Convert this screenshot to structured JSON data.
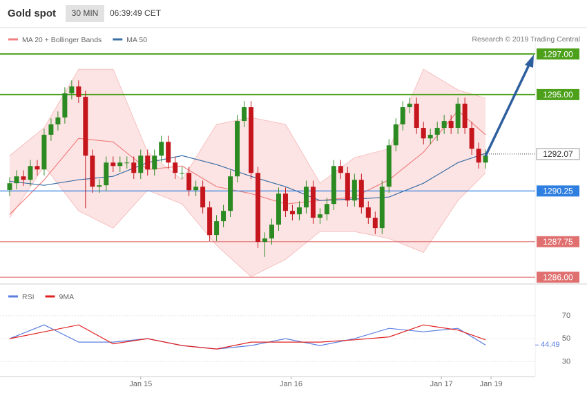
{
  "header": {
    "title": "Gold spot",
    "interval": "30 MIN",
    "time": "06:39:49 CET"
  },
  "credit": "Research © 2019 Trading Central",
  "chart_data": [
    {
      "type": "candlestick",
      "ylim": [
        1285.7,
        1297.55
      ],
      "xlim": [
        -1.4,
        76.2
      ],
      "xticks": [
        {
          "value": 19,
          "label": "Jan 15"
        },
        {
          "value": 40.8,
          "label": "Jan 16"
        },
        {
          "value": 62.6,
          "label": "Jan 17"
        },
        {
          "value": 69.8,
          "label": "Jan 19"
        }
      ],
      "up_color": "#2b8a22",
      "down_color": "#c4161c",
      "open": [
        1290.3,
        1290.63,
        1290.97,
        1290.8,
        1291.48,
        1291.31,
        1293.02,
        1293.53,
        1293.87,
        1295.06,
        1295.4,
        1294.89,
        1291.99,
        1290.46,
        1290.53,
        1291.65,
        1291.48,
        1291.65,
        1291.65,
        1291.14,
        1291.99,
        1291.31,
        1291.99,
        1292.67,
        1291.65,
        1291.14,
        1291.14,
        1290.29,
        1290.46,
        1289.44,
        1288.08,
        1288.76,
        1289.27,
        1290.97,
        1293.7,
        1294.38,
        1291.14,
        1287.74,
        1287.91,
        1288.59,
        1290.12,
        1289.27,
        1289.1,
        1289.44,
        1290.46,
        1288.93,
        1289.1,
        1289.61,
        1291.48,
        1291.14,
        1289.78,
        1290.8,
        1289.44,
        1288.93,
        1288.42,
        1290.46,
        1292.5,
        1293.53,
        1294.38,
        1294.55,
        1293.36,
        1292.84,
        1293.02,
        1293.36,
        1293.7,
        1293.36,
        1294.55,
        1293.36,
        1292.33,
        1291.65
      ],
      "high": [
        1290.93,
        1291.27,
        1291.27,
        1291.78,
        1291.78,
        1293.32,
        1293.83,
        1294.17,
        1295.36,
        1295.7,
        1295.7,
        1295.19,
        1292.29,
        1290.83,
        1291.95,
        1291.95,
        1291.95,
        1291.95,
        1291.95,
        1292.29,
        1292.29,
        1292.29,
        1292.97,
        1292.97,
        1291.95,
        1291.44,
        1291.44,
        1290.76,
        1290.76,
        1289.74,
        1289.06,
        1289.57,
        1291.27,
        1294.0,
        1294.68,
        1294.68,
        1291.44,
        1288.21,
        1288.89,
        1290.42,
        1290.42,
        1289.57,
        1289.74,
        1290.76,
        1290.76,
        1289.4,
        1289.91,
        1291.78,
        1291.78,
        1291.44,
        1291.1,
        1291.1,
        1289.74,
        1289.23,
        1290.76,
        1292.8,
        1293.83,
        1294.68,
        1294.85,
        1294.85,
        1293.66,
        1293.32,
        1293.66,
        1294.0,
        1294.0,
        1294.85,
        1294.85,
        1293.66,
        1292.63,
        1292.29
      ],
      "low": [
        1290.0,
        1290.33,
        1290.5,
        1290.5,
        1291.01,
        1291.01,
        1292.72,
        1293.23,
        1293.57,
        1294.76,
        1294.59,
        1289.4,
        1290.16,
        1290.16,
        1290.23,
        1291.18,
        1291.18,
        1291.35,
        1290.84,
        1290.84,
        1291.01,
        1291.01,
        1291.69,
        1291.35,
        1290.84,
        1290.84,
        1289.99,
        1289.99,
        1289.14,
        1287.78,
        1287.78,
        1288.46,
        1288.97,
        1290.67,
        1293.4,
        1290.84,
        1287.44,
        1287.0,
        1287.61,
        1288.29,
        1288.97,
        1288.8,
        1288.8,
        1289.14,
        1288.63,
        1288.63,
        1288.8,
        1289.31,
        1290.84,
        1289.48,
        1289.48,
        1289.14,
        1288.63,
        1288.12,
        1288.12,
        1290.16,
        1292.2,
        1293.23,
        1294.08,
        1293.06,
        1292.54,
        1292.54,
        1292.72,
        1293.06,
        1293.06,
        1293.06,
        1293.06,
        1292.03,
        1291.35,
        1291.35
      ],
      "close": [
        1290.63,
        1290.97,
        1290.8,
        1291.48,
        1291.31,
        1293.02,
        1293.53,
        1293.87,
        1295.06,
        1295.4,
        1294.89,
        1291.99,
        1290.46,
        1290.53,
        1291.65,
        1291.48,
        1291.65,
        1291.65,
        1291.14,
        1291.99,
        1291.31,
        1291.99,
        1292.67,
        1291.65,
        1291.14,
        1291.14,
        1290.29,
        1290.46,
        1289.44,
        1288.08,
        1288.76,
        1289.27,
        1290.97,
        1293.7,
        1294.38,
        1291.14,
        1287.74,
        1287.91,
        1288.59,
        1290.12,
        1289.27,
        1289.1,
        1289.44,
        1290.46,
        1288.93,
        1289.1,
        1289.61,
        1291.48,
        1291.14,
        1289.78,
        1290.8,
        1289.44,
        1288.93,
        1288.42,
        1290.46,
        1292.5,
        1293.53,
        1294.38,
        1294.55,
        1293.36,
        1292.84,
        1293.02,
        1293.36,
        1293.7,
        1293.36,
        1294.55,
        1293.36,
        1292.33,
        1291.65,
        1291.99
      ],
      "bands": {
        "name": "MA 20 + Bollinger Bands",
        "color": "#f08080",
        "fill": "#fde4e4",
        "edge": "#f6c0c0",
        "x": [
          0,
          5,
          10,
          15,
          20,
          25,
          30,
          35,
          40,
          45,
          50,
          55,
          60,
          65,
          69
        ],
        "upper": [
          1291.99,
          1293.36,
          1296.25,
          1296.25,
          1292.16,
          1290.8,
          1293.53,
          1293.87,
          1293.53,
          1290.63,
          1291.89,
          1292.33,
          1296.25,
          1295.23,
          1294.82
        ],
        "middle": [
          1289.1,
          1290.8,
          1292.84,
          1292.67,
          1291.31,
          1291.48,
          1290.46,
          1290.12,
          1289.61,
          1289.78,
          1289.95,
          1290.8,
          1292.16,
          1294.21,
          1293.02
        ],
        "lower": [
          1288.93,
          1291.48,
          1289.27,
          1288.42,
          1290.29,
          1289.61,
          1287.57,
          1286.03,
          1286.88,
          1288.25,
          1288.25,
          1287.91,
          1287.22,
          1289.78,
          1291.14
        ]
      },
      "series": [
        {
          "name": "MA 50",
          "color": "#3a6ea5",
          "x": [
            0,
            5,
            10,
            15,
            20,
            25,
            30,
            35,
            40,
            45,
            50,
            55,
            60,
            65,
            69
          ],
          "values": [
            1290.73,
            1290.53,
            1290.8,
            1290.97,
            1291.65,
            1291.99,
            1291.55,
            1290.97,
            1290.46,
            1289.78,
            1289.85,
            1289.95,
            1290.63,
            1291.65,
            1292.1
          ]
        }
      ],
      "levels": [
        {
          "value": 1297.0,
          "label": "1297.00",
          "color": "#4ca01a",
          "style": "solid"
        },
        {
          "value": 1295.0,
          "label": "1295.00",
          "color": "#4ca01a",
          "style": "solid"
        },
        {
          "value": 1292.07,
          "label": "1292.07",
          "color": "#333333",
          "style": "dotted"
        },
        {
          "value": 1290.25,
          "label": "1290.25",
          "color": "#2f7fe0",
          "style": "solid"
        },
        {
          "value": 1287.75,
          "label": "1287.75",
          "color": "#e07070",
          "style": "solid"
        },
        {
          "value": 1286.0,
          "label": "1286.00",
          "color": "#e07070",
          "style": "solid"
        }
      ]
    },
    {
      "type": "line",
      "ylim": [
        20,
        97
      ],
      "xlim": [
        -1.4,
        76.2
      ],
      "yticks": [
        30,
        50,
        70
      ],
      "series": [
        {
          "name": "RSI",
          "color": "#5b7fe0",
          "x": [
            0,
            5,
            10,
            15,
            20,
            25,
            30,
            35,
            40,
            45,
            50,
            55,
            60,
            65,
            69
          ],
          "values": [
            50,
            62,
            47,
            47,
            50,
            44,
            41,
            44,
            50,
            44,
            50,
            59,
            56,
            59,
            44.49
          ]
        },
        {
          "name": "9MA",
          "color": "#e02020",
          "x": [
            0,
            5,
            10,
            15,
            20,
            25,
            30,
            35,
            40,
            45,
            50,
            55,
            60,
            65,
            69
          ],
          "values": [
            50,
            56,
            62,
            45.5,
            50,
            44,
            41,
            47,
            47,
            47,
            49,
            51.5,
            62,
            57.5,
            49
          ]
        }
      ],
      "last_value": 44.49
    }
  ]
}
